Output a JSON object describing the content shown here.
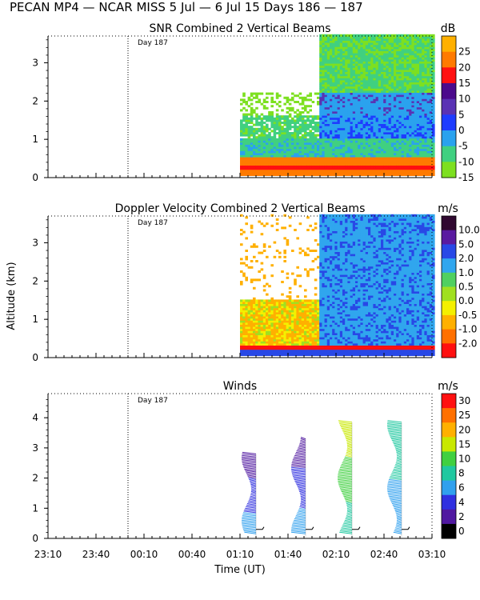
{
  "figure": {
    "title": "PECAN MP4 — NCAR MISS    5 Jul —  6 Jul 15 Days 186 — 187",
    "ylabel": "Altitude (km)",
    "xlabel": "Time (UT)",
    "x_tick_labels": [
      "23:10",
      "23:40",
      "00:10",
      "00:40",
      "01:10",
      "01:40",
      "02:10",
      "02:40",
      "03:10"
    ],
    "day_marker": "Day 187"
  },
  "chart_data": [
    {
      "type": "heatmap",
      "title": "SNR Combined 2 Vertical Beams",
      "unit": "dB",
      "ylim": [
        0,
        3.7
      ],
      "yticks": [
        0,
        1,
        2,
        3
      ],
      "colorbar": {
        "labels": [
          "25",
          "20",
          "15",
          "10",
          "5",
          "0",
          "-5",
          "-10",
          "-15"
        ],
        "colors": [
          "#ffb000",
          "#ff7a00",
          "#ff1010",
          "#4b0a8c",
          "#5a32b4",
          "#1e3cff",
          "#2aa2ee",
          "#40d080",
          "#7de020"
        ]
      }
    },
    {
      "type": "heatmap",
      "title": "Doppler Velocity Combined 2 Vertical Beams",
      "unit": "m/s",
      "ylim": [
        0,
        3.7
      ],
      "yticks": [
        0,
        1,
        2,
        3
      ],
      "colorbar": {
        "labels": [
          "10.0",
          "5.0",
          "2.0",
          "1.0",
          "0.5",
          "0.0",
          "-0.5",
          "-1.0",
          "-2.0"
        ],
        "colors": [
          "#300830",
          "#5a1aa0",
          "#2848e6",
          "#30a6ee",
          "#50d060",
          "#a0e020",
          "#f4f000",
          "#ffb000",
          "#ff7000",
          "#ff1010"
        ]
      }
    },
    {
      "type": "scatter",
      "title": "Winds",
      "unit": "m/s",
      "ylim": [
        0,
        4.8
      ],
      "yticks": [
        0,
        1,
        2,
        3,
        4
      ],
      "colorbar": {
        "labels": [
          "30",
          "25",
          "20",
          "15",
          "10",
          "8",
          "6",
          "4",
          "2",
          "0"
        ],
        "colors": [
          "#ff1010",
          "#ff7000",
          "#ffb000",
          "#c8e800",
          "#40d040",
          "#20c8a0",
          "#30a0ee",
          "#3030e0",
          "#5018a0",
          "#000000"
        ]
      },
      "profiles": [
        {
          "time": "01:20",
          "top": 2.8
        },
        {
          "time": "01:51",
          "top": 3.3
        },
        {
          "time": "02:20",
          "top": 3.85
        },
        {
          "time": "02:51",
          "top": 3.85
        }
      ]
    }
  ]
}
